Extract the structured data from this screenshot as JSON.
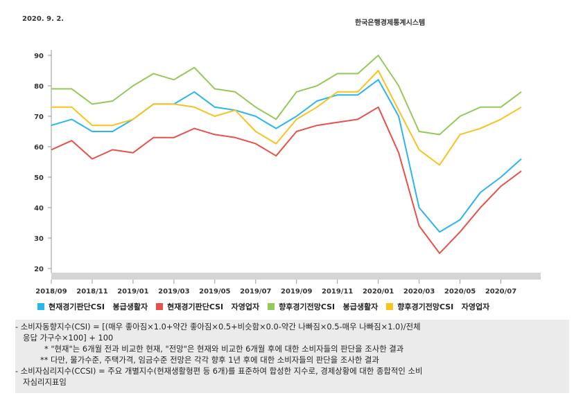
{
  "header": {
    "date": "2020. 9. 2.",
    "source": "한국은행경제통계시스템"
  },
  "colors": {
    "blue": "#29b5ee",
    "red": "#e8504a",
    "green": "#95c85a",
    "yellow": "#f9c21c",
    "bar": "#d4d4d4"
  },
  "chart_data": {
    "type": "line",
    "x": [
      "2018/09",
      "2018/10",
      "2018/11",
      "2018/12",
      "2019/01",
      "2019/02",
      "2019/03",
      "2019/04",
      "2019/05",
      "2019/06",
      "2019/07",
      "2019/08",
      "2019/09",
      "2019/10",
      "2019/11",
      "2019/12",
      "2020/01",
      "2020/02",
      "2020/03",
      "2020/04",
      "2020/05",
      "2020/06",
      "2020/07",
      "2020/08"
    ],
    "xticks": [
      "2018/09",
      "2018/11",
      "2019/01",
      "2019/03",
      "2019/05",
      "2019/07",
      "2019/09",
      "2019/11",
      "2020/01",
      "2020/03",
      "2020/05",
      "2020/07"
    ],
    "yticks": [
      20,
      30,
      40,
      50,
      60,
      70,
      80,
      90
    ],
    "ylim": [
      20,
      90
    ],
    "series": [
      {
        "name": "현재경기판단CSI",
        "color": "#29b5ee",
        "values": [
          67,
          69,
          65,
          65,
          69,
          74,
          74,
          78,
          73,
          72,
          70,
          66,
          70,
          75,
          77,
          77,
          82,
          70,
          40,
          32,
          36,
          45,
          50,
          56
        ]
      },
      {
        "name": "현재경기판단CSI",
        "color": "#e8504a",
        "values": [
          59,
          62,
          56,
          59,
          58,
          63,
          63,
          66,
          64,
          63,
          61,
          57,
          65,
          67,
          68,
          69,
          73,
          58,
          34,
          25,
          32,
          40,
          47,
          52
        ]
      },
      {
        "name": "향후경기전망CSI",
        "color": "#95c85a",
        "values": [
          79,
          79,
          74,
          75,
          80,
          84,
          82,
          86,
          79,
          78,
          73,
          69,
          78,
          80,
          84,
          84,
          90,
          80,
          65,
          64,
          70,
          73,
          73,
          78
        ]
      },
      {
        "name": "향후경기전망CSI",
        "color": "#f9c21c",
        "values": [
          73,
          73,
          67,
          67,
          69,
          74,
          74,
          73,
          70,
          72,
          65,
          61,
          69,
          73,
          78,
          78,
          85,
          72,
          59,
          54,
          64,
          66,
          69,
          73
        ]
      }
    ],
    "legend": [
      {
        "label": "현재경기판단CSI",
        "sub": "봉급생활자",
        "color": "#29b5ee"
      },
      {
        "label": "현재경기판단CSI",
        "sub": "자영업자",
        "color": "#e8504a"
      },
      {
        "label": "향후경기전망CSI",
        "sub": "봉급생활자",
        "color": "#95c85a"
      },
      {
        "label": "향후경기전망CSI",
        "sub": "자영업자",
        "color": "#f9c21c"
      }
    ],
    "grid": false
  },
  "notes": {
    "line1": "- 소비자동향지수(CSI) = [(매우 좋아짐×1.0+약간 좋아짐×0.5+비슷함×0.0-약간 나빠짐×0.5-매우 나빠짐×1.0)/전체",
    "line2": "응답 가구수×100] + 100",
    "line3": "* \"현재\"는 6개월 전과 비교한 현재, \"전망\"은 현재와 비교한 6개월 후에 대한 소비자들의 판단을 조사한 결과",
    "line4": "** 다만, 물가수준, 주택가격, 임금수준 전망은 각각 향후 1년 후에 대한 소비자들의 판단을 조사한 결과",
    "line5": "- 소비자심리지수(CCSI) = 주요 개별지수(현재생활형편 등 6개)를 표준하여 합성한 지수로, 경제상황에 대한 종합적인 소비",
    "line6": "자심리지표임"
  }
}
